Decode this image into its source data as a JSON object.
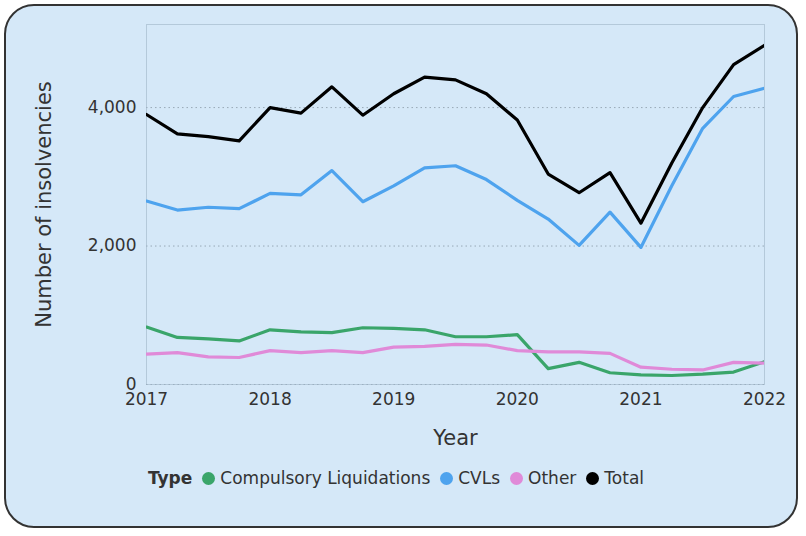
{
  "chart_data": {
    "type": "line",
    "x_label": "Year",
    "y_label": "Number of insolvencies",
    "legend_title": "Type",
    "legend": "bottom",
    "grid": true,
    "xlim": [
      2017,
      2022
    ],
    "xticks": [
      2017,
      2018,
      2019,
      2020,
      2021,
      2022
    ],
    "ylim": [
      0,
      5200
    ],
    "yticks": [
      0,
      {
        "value": 2000,
        "label": "2,000"
      },
      {
        "value": 4000,
        "label": "4,000"
      }
    ],
    "x": [
      2017,
      2017.25,
      2017.5,
      2017.75,
      2018,
      2018.25,
      2018.5,
      2018.75,
      2019,
      2019.25,
      2019.5,
      2019.75,
      2020,
      2020.25,
      2020.5,
      2020.75,
      2021,
      2021.25,
      2021.5,
      2021.75,
      2022
    ],
    "series": [
      {
        "name": "Compulsory Liquidations",
        "color": "#3aa56a",
        "values": [
          830,
          680,
          660,
          630,
          790,
          760,
          750,
          820,
          810,
          790,
          690,
          690,
          720,
          230,
          320,
          170,
          140,
          130,
          150,
          180,
          330
        ]
      },
      {
        "name": "CVLs",
        "color": "#4ea3ee",
        "values": [
          2650,
          2520,
          2560,
          2540,
          2760,
          2740,
          3090,
          2640,
          2870,
          3130,
          3160,
          2960,
          2660,
          2390,
          2010,
          2490,
          1980,
          2870,
          3700,
          4160,
          4280
        ]
      },
      {
        "name": "Other",
        "color": "#e08ad8",
        "values": [
          440,
          460,
          400,
          390,
          490,
          460,
          490,
          460,
          540,
          550,
          580,
          570,
          490,
          470,
          470,
          450,
          250,
          220,
          210,
          320,
          310
        ]
      },
      {
        "name": "Total",
        "color": "#000000",
        "values": [
          3900,
          3620,
          3580,
          3520,
          4000,
          3920,
          4300,
          3890,
          4200,
          4440,
          4400,
          4200,
          3820,
          3040,
          2770,
          3060,
          2330,
          3200,
          4000,
          4620,
          4900
        ]
      }
    ]
  }
}
